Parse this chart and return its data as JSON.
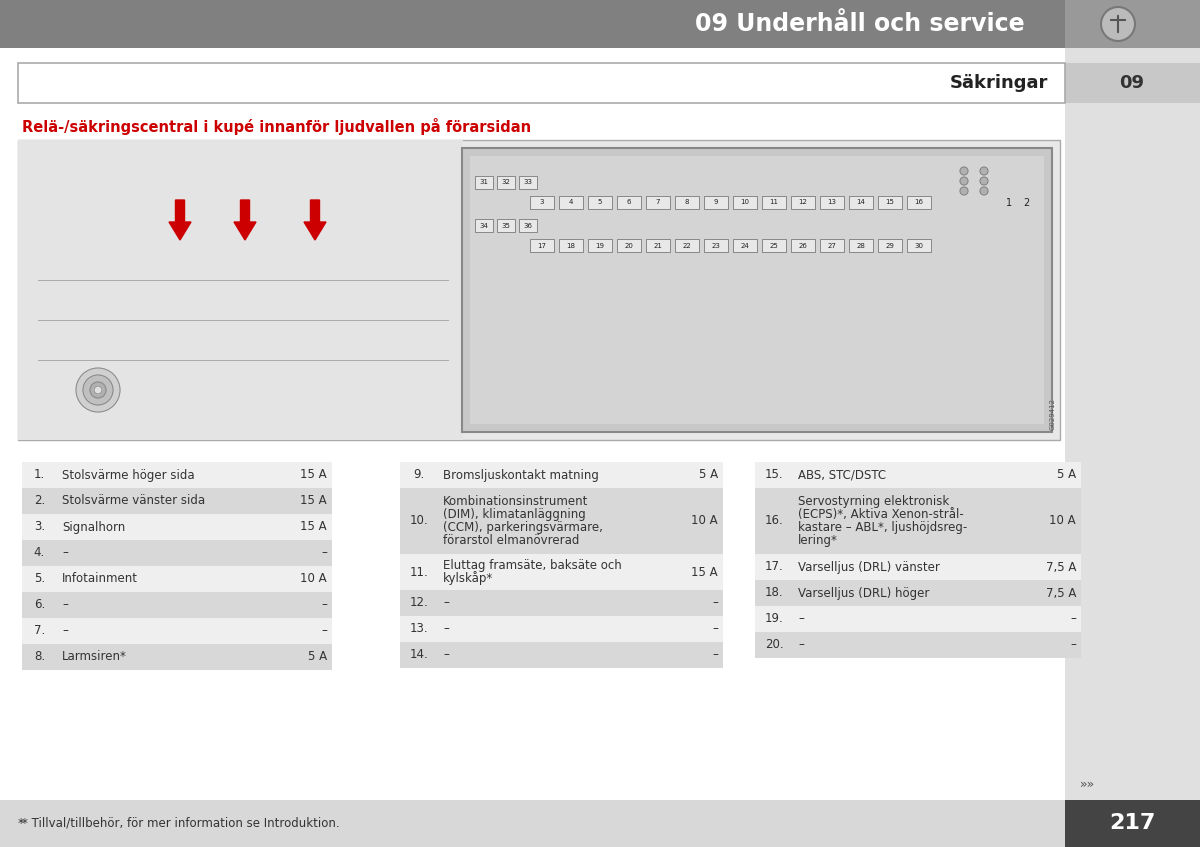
{
  "header_text": "09 Underhåll och service",
  "header_bg": "#808080",
  "header_text_color": "#ffffff",
  "section_label": "09",
  "section_title": "Säkringar",
  "red_title": "Relä-/säkringscentral i kupé innanför ljudvallen på förarsidan",
  "red_color": "#cc0000",
  "page_bg": "#ffffff",
  "table_odd_row": "#d8d8d8",
  "table_even_row": "#efefef",
  "sidebar_bg": "#c8c8c8",
  "sidebar_tab_bg": "#b0b0b0",
  "footer_note": "* Tillval/tillbehör, för mer information se Introduktion.",
  "page_number": "217",
  "col1": [
    [
      "1.",
      "Stolsvärme höger sida",
      "15 A"
    ],
    [
      "2.",
      "Stolsvärme vänster sida",
      "15 A"
    ],
    [
      "3.",
      "Signalhorn",
      "15 A"
    ],
    [
      "4.",
      "–",
      "–"
    ],
    [
      "5.",
      "Infotainment",
      "10 A"
    ],
    [
      "6.",
      "–",
      "–"
    ],
    [
      "7.",
      "–",
      "–"
    ],
    [
      "8.",
      "Larmsiren*",
      "5 A"
    ]
  ],
  "col2": [
    [
      "9.",
      "Bromsljuskontakt matning",
      "5 A"
    ],
    [
      "10.",
      "Kombinationsinstrument\n(DIM), klimatanläggning\n(CCM), parkeringsvärmare,\nförarstol elmanövrerad",
      "10 A"
    ],
    [
      "11.",
      "Eluttag framsäte, baksäte och\nkylskåp*",
      "15 A"
    ],
    [
      "12.",
      "–",
      "–"
    ],
    [
      "13.",
      "–",
      "–"
    ],
    [
      "14.",
      "–",
      "–"
    ]
  ],
  "col3": [
    [
      "15.",
      "ABS, STC/DSTC",
      "5 A"
    ],
    [
      "16.",
      "Servostyrning elektronisk\n(ECPS)*, Aktiva Xenon-strål-\nkastare – ABL*, ljushöjdsreg-\nlering*",
      "10 A"
    ],
    [
      "17.",
      "Varselljus (DRL) vänster",
      "7,5 A"
    ],
    [
      "18.",
      "Varselljus (DRL) höger",
      "7,5 A"
    ],
    [
      "19.",
      "–",
      "–"
    ],
    [
      "20.",
      "–",
      "–"
    ]
  ]
}
